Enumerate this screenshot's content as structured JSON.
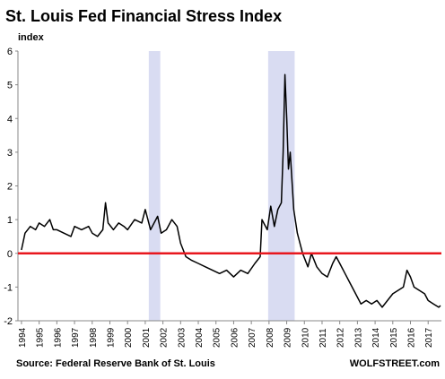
{
  "chart_data": {
    "type": "line",
    "title": "St. Louis Fed Financial Stress Index",
    "y_label": "index",
    "source": "Source: Federal Reserve Bank of St. Louis",
    "credit": "WOLFSTREET.com",
    "xlim": [
      1993.8,
      2017.75
    ],
    "xticks": [
      1994,
      1995,
      1996,
      1997,
      1998,
      1999,
      2000,
      2001,
      2002,
      2003,
      2004,
      2005,
      2006,
      2007,
      2008,
      2009,
      2010,
      2011,
      2012,
      2013,
      2014,
      2015,
      2016,
      2017
    ],
    "ylim": [
      -2,
      6
    ],
    "yticks": [
      -2,
      -1,
      0,
      1,
      2,
      3,
      4,
      5,
      6
    ],
    "grid": false,
    "reference_line": {
      "y": 0,
      "color": "#e8171e"
    },
    "recessions": {
      "color": "#d9dcf2",
      "spans": [
        [
          2001.2,
          2001.85
        ],
        [
          2007.95,
          2009.45
        ]
      ]
    },
    "series": [
      {
        "name": "St. Louis Fed Financial Stress Index",
        "color": "#000000",
        "x": [
          1994.0,
          1994.2,
          1994.5,
          1994.8,
          1995.0,
          1995.3,
          1995.6,
          1995.8,
          1996.0,
          1996.4,
          1996.8,
          1997.0,
          1997.4,
          1997.8,
          1998.0,
          1998.3,
          1998.6,
          1998.75,
          1998.9,
          1999.2,
          1999.5,
          1999.8,
          2000.0,
          2000.4,
          2000.8,
          2001.0,
          2001.3,
          2001.7,
          2001.9,
          2002.2,
          2002.5,
          2002.8,
          2003.0,
          2003.3,
          2003.6,
          2004.0,
          2004.4,
          2004.8,
          2005.2,
          2005.6,
          2006.0,
          2006.4,
          2006.8,
          2007.2,
          2007.5,
          2007.6,
          2007.9,
          2008.1,
          2008.3,
          2008.5,
          2008.7,
          2008.8,
          2008.9,
          2009.0,
          2009.1,
          2009.2,
          2009.4,
          2009.6,
          2009.9,
          2010.2,
          2010.4,
          2010.7,
          2011.0,
          2011.3,
          2011.6,
          2011.8,
          2012.0,
          2012.3,
          2012.6,
          2012.9,
          2013.2,
          2013.5,
          2013.8,
          2014.1,
          2014.4,
          2014.7,
          2015.0,
          2015.3,
          2015.6,
          2015.8,
          2016.0,
          2016.2,
          2016.5,
          2016.8,
          2017.0,
          2017.3,
          2017.6,
          2017.7
        ],
        "values": [
          0.1,
          0.6,
          0.8,
          0.7,
          0.9,
          0.8,
          1.0,
          0.7,
          0.7,
          0.6,
          0.5,
          0.8,
          0.7,
          0.8,
          0.6,
          0.5,
          0.7,
          1.5,
          0.9,
          0.7,
          0.9,
          0.8,
          0.7,
          1.0,
          0.9,
          1.3,
          0.7,
          1.1,
          0.6,
          0.7,
          1.0,
          0.8,
          0.3,
          -0.1,
          -0.2,
          -0.3,
          -0.4,
          -0.5,
          -0.6,
          -0.5,
          -0.7,
          -0.5,
          -0.6,
          -0.3,
          -0.1,
          1.0,
          0.7,
          1.4,
          0.8,
          1.3,
          1.5,
          3.0,
          5.3,
          4.0,
          2.5,
          3.0,
          1.3,
          0.6,
          0.0,
          -0.4,
          0.0,
          -0.4,
          -0.6,
          -0.7,
          -0.3,
          -0.1,
          -0.3,
          -0.6,
          -0.9,
          -1.2,
          -1.5,
          -1.4,
          -1.5,
          -1.4,
          -1.6,
          -1.4,
          -1.2,
          -1.1,
          -1.0,
          -0.5,
          -0.7,
          -1.0,
          -1.1,
          -1.2,
          -1.4,
          -1.5,
          -1.6,
          -1.55
        ]
      }
    ]
  }
}
